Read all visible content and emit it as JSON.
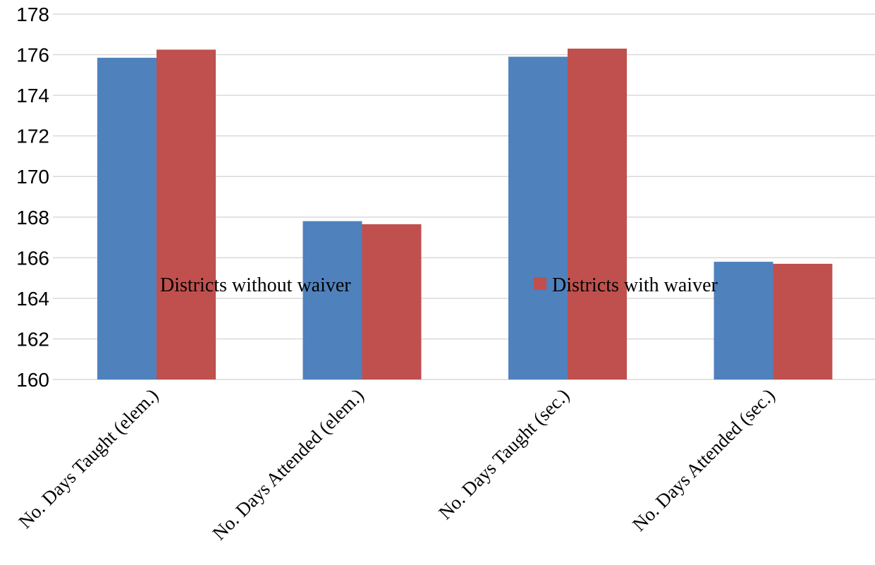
{
  "chart_data": {
    "type": "bar",
    "categories": [
      "No. Days Taught (elem.)",
      "No. Days Attended (elem.)",
      "No. Days Taught (sec.)",
      "No. Days Attended (sec.)"
    ],
    "series": [
      {
        "name": "Districts without waiver",
        "color": "#4f81bd",
        "values": [
          175.85,
          167.8,
          175.9,
          165.8
        ]
      },
      {
        "name": "Districts with waiver",
        "color": "#c0504d",
        "values": [
          176.25,
          167.65,
          176.3,
          165.7
        ]
      }
    ],
    "title": "",
    "xlabel": "",
    "ylabel": "",
    "ylim": [
      160,
      178
    ],
    "yticks": [
      "160",
      "162",
      "164",
      "166",
      "168",
      "170",
      "172",
      "174",
      "176",
      "178"
    ],
    "grid": true,
    "legend_position": "center",
    "legend_swatch_shown": [
      false,
      true
    ]
  }
}
